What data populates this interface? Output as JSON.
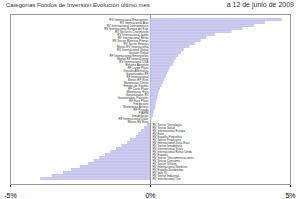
{
  "chart_data": {
    "type": "bar",
    "orientation": "horizontal",
    "title": "Categorías Fondos de Inversión Evolución último mes",
    "subtitle": "a 12 de junio de 2009",
    "color": "#ccccf5",
    "categories": [
      "RV Internacional Emergentes",
      "RV Internacional Asia",
      "RV Internacional Latinoamérica",
      "RV Internacional Europa del Este",
      "RV Sectores Crecimiento",
      "RV Internacional Japón",
      "RV Internacional Resto",
      "RV Sector Materias Primas",
      "RV Sector Energía",
      "Mixtos RV Internacional",
      "RV Internacional Global",
      "Gestión Global",
      "RF Internacional Emergentes",
      "Mixtos RF Internacional",
      "RV Internacional USA",
      "Retorno Absoluto",
      "RF Largo Plazo",
      "Gestión Alternativa",
      "Garantizados RF",
      "RF Internacional",
      "Mixtos RF Euro",
      "Monetarios Dinero",
      "Fondos de Fondos",
      "RF Corto Plazo",
      "Monetarios Euro",
      "Garantizados RV",
      "Garantizados Parciales",
      "RF Euro Plazo",
      "Fondtesoro",
      "Monetarios Activos",
      "RF Privada",
      "FIAMM",
      "Inmobiliarios",
      "RF Internacional Dólar",
      "Mixtos RV Euro",
      "RV Sector Tecnología",
      "RV Sector Salud",
      "RV Internacional Europa",
      "RV Euro",
      "RV España Pequeñas",
      "RV Sector Financiero",
      "RV Internacional Zona Euro",
      "RV Sector Inmobiliario",
      "RV Internacional Suiza",
      "RV Internacional Reino Unido",
      "RV España",
      "RV Sector Telecomunicaciones",
      "RV Sector Consumo",
      "RV Sector Utilities",
      "RV Internacional Nórdicos",
      "RV España Dividendos",
      "RV Ibex 35",
      "RV Sector Industrial",
      "RV Internacional Oro"
    ],
    "values": [
      4.7,
      4.1,
      3.7,
      3.3,
      2.9,
      2.3,
      2.0,
      1.8,
      1.6,
      1.4,
      1.2,
      1.1,
      1.0,
      0.9,
      0.85,
      0.8,
      0.7,
      0.65,
      0.6,
      0.55,
      0.5,
      0.45,
      0.4,
      0.35,
      0.3,
      0.28,
      0.25,
      0.22,
      0.2,
      0.18,
      0.15,
      0.12,
      0.1,
      0.05,
      0.02,
      -0.1,
      -0.2,
      -0.3,
      -0.4,
      -0.5,
      -0.7,
      -0.8,
      -1.0,
      -1.2,
      -1.4,
      -1.6,
      -1.8,
      -2.0,
      -2.2,
      -2.5,
      -2.8,
      -3.1,
      -3.5,
      -3.9
    ],
    "xlim": [
      -5,
      5
    ],
    "xticks": [
      {
        "value": -5,
        "label": "-5%"
      },
      {
        "value": 0,
        "label": "0%"
      },
      {
        "value": 5,
        "label": "5%"
      }
    ]
  }
}
